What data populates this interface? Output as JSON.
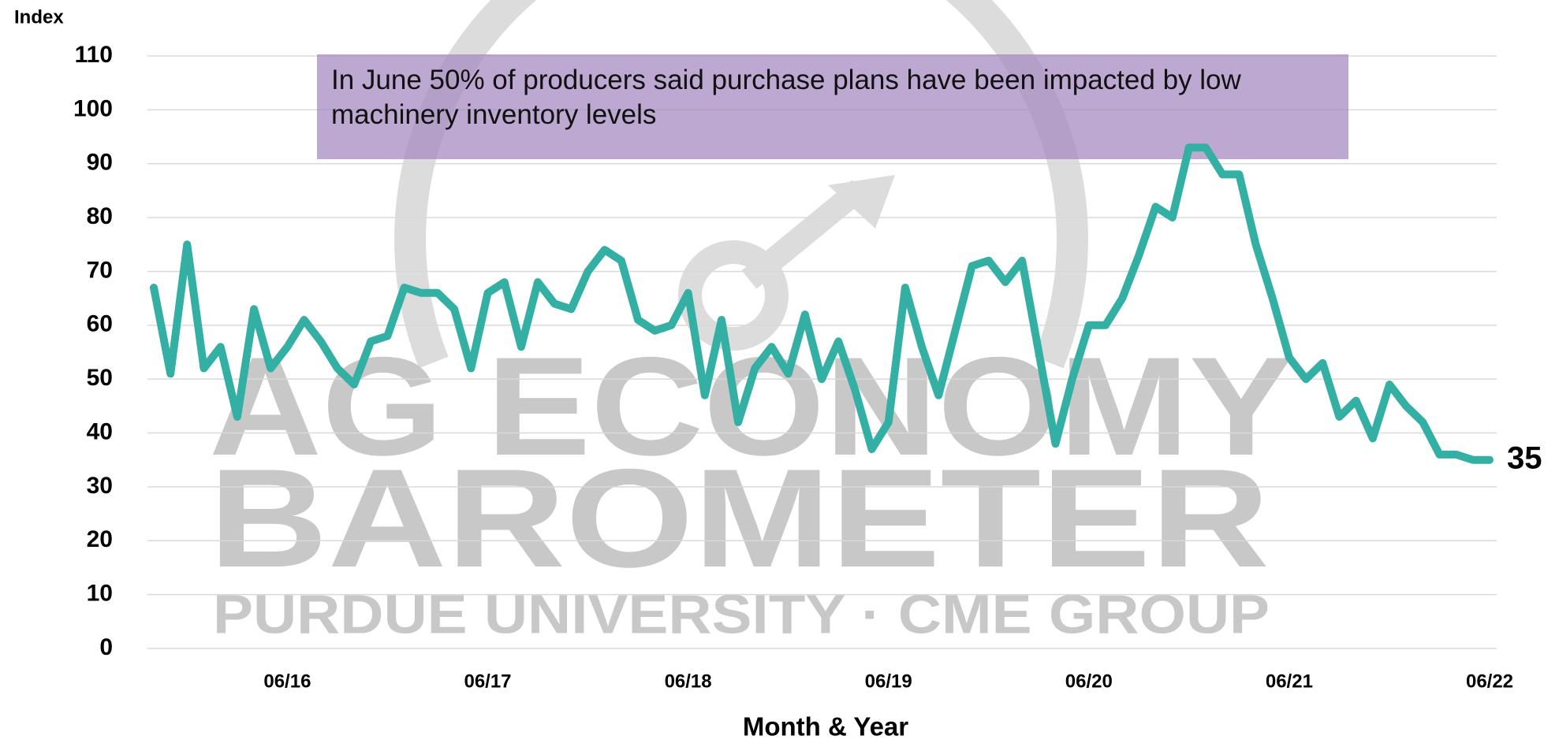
{
  "chart_data": {
    "type": "line",
    "y_label": "Index",
    "x_label": "Month & Year",
    "annotation": "In June 50% of producers said purchase plans have been impacted by low machinery inventory levels",
    "watermark": [
      "AG ECONOMY",
      "BAROMETER",
      "PURDUE UNIVERSITY · CME GROUP"
    ],
    "categories": [
      null,
      null,
      null,
      null,
      null,
      null,
      null,
      null,
      "06/16",
      null,
      null,
      null,
      null,
      null,
      null,
      null,
      null,
      null,
      null,
      null,
      "06/17",
      null,
      null,
      null,
      null,
      null,
      null,
      null,
      null,
      null,
      null,
      null,
      "06/18",
      null,
      null,
      null,
      null,
      null,
      null,
      null,
      null,
      null,
      null,
      null,
      "06/19",
      null,
      null,
      null,
      null,
      null,
      null,
      null,
      null,
      null,
      null,
      null,
      "06/20",
      null,
      null,
      null,
      null,
      null,
      null,
      null,
      null,
      null,
      null,
      null,
      "06/21",
      null,
      null,
      null,
      null,
      null,
      null,
      null,
      null,
      null,
      null,
      null,
      "06/22"
    ],
    "series": [
      {
        "color": "#33b0a3",
        "values": [
          67,
          51,
          75,
          52,
          56,
          43,
          63,
          52,
          56,
          61,
          57,
          52,
          49,
          57,
          58,
          67,
          66,
          66,
          63,
          52,
          66,
          68,
          56,
          68,
          64,
          63,
          70,
          74,
          72,
          61,
          59,
          60,
          66,
          47,
          61,
          42,
          52,
          56,
          51,
          62,
          50,
          57,
          48,
          37,
          42,
          67,
          56,
          47,
          59,
          71,
          72,
          68,
          72,
          55,
          38,
          50,
          60,
          60,
          65,
          73,
          82,
          80,
          93,
          93,
          88,
          88,
          75,
          65,
          54,
          50,
          53,
          43,
          46,
          39,
          49,
          45,
          42,
          36,
          36,
          35,
          35
        ]
      }
    ],
    "ylim": [
      0,
      110
    ],
    "yticks": [
      0,
      10,
      20,
      30,
      40,
      50,
      60,
      70,
      80,
      90,
      100,
      110
    ],
    "grid": true
  }
}
